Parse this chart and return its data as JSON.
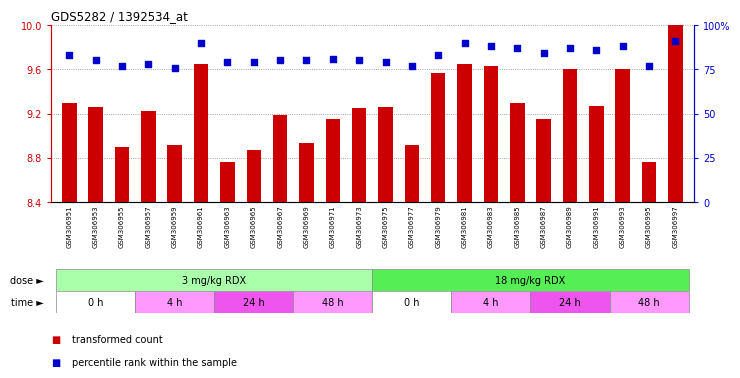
{
  "title": "GDS5282 / 1392534_at",
  "samples": [
    "GSM306951",
    "GSM306953",
    "GSM306955",
    "GSM306957",
    "GSM306959",
    "GSM306961",
    "GSM306963",
    "GSM306965",
    "GSM306967",
    "GSM306969",
    "GSM306971",
    "GSM306973",
    "GSM306975",
    "GSM306977",
    "GSM306979",
    "GSM306981",
    "GSM306983",
    "GSM306985",
    "GSM306987",
    "GSM306989",
    "GSM306991",
    "GSM306993",
    "GSM306995",
    "GSM306997"
  ],
  "bar_values": [
    9.3,
    9.26,
    8.9,
    9.22,
    8.92,
    9.65,
    8.76,
    8.87,
    9.19,
    8.93,
    9.15,
    9.25,
    9.26,
    8.92,
    9.57,
    9.65,
    9.63,
    9.3,
    9.15,
    9.6,
    9.27,
    9.6,
    8.76,
    10.0
  ],
  "dot_values": [
    83,
    80,
    77,
    78,
    76,
    90,
    79,
    79,
    80,
    80,
    81,
    80,
    79,
    77,
    83,
    90,
    88,
    87,
    84,
    87,
    86,
    88,
    77,
    91
  ],
  "ylim_left": [
    8.4,
    10.0
  ],
  "ylim_right": [
    0,
    100
  ],
  "bar_color": "#CC0000",
  "dot_color": "#0000CC",
  "grid_color": "#888888",
  "bg_color": "#FFFFFF",
  "tick_color_left": "#CC0000",
  "tick_color_right": "#0000CC",
  "yticks_left": [
    8.4,
    8.8,
    9.2,
    9.6,
    10.0
  ],
  "yticks_right": [
    0,
    25,
    50,
    75,
    100
  ],
  "dose_boundaries": [
    {
      "label": "3 mg/kg RDX",
      "start": 0,
      "end": 11,
      "color": "#AAFFAA"
    },
    {
      "label": "18 mg/kg RDX",
      "start": 12,
      "end": 23,
      "color": "#55EE55"
    }
  ],
  "time_boundaries": [
    {
      "label": "0 h",
      "start": 0,
      "end": 2,
      "color": "#FFFFFF"
    },
    {
      "label": "4 h",
      "start": 3,
      "end": 5,
      "color": "#FF99FF"
    },
    {
      "label": "24 h",
      "start": 6,
      "end": 8,
      "color": "#EE55EE"
    },
    {
      "label": "48 h",
      "start": 9,
      "end": 11,
      "color": "#FF99FF"
    },
    {
      "label": "0 h",
      "start": 12,
      "end": 14,
      "color": "#FFFFFF"
    },
    {
      "label": "4 h",
      "start": 15,
      "end": 17,
      "color": "#FF99FF"
    },
    {
      "label": "24 h",
      "start": 18,
      "end": 20,
      "color": "#EE55EE"
    },
    {
      "label": "48 h",
      "start": 21,
      "end": 23,
      "color": "#FF99FF"
    }
  ],
  "legend_red": "transformed count",
  "legend_blue": "percentile rank within the sample"
}
